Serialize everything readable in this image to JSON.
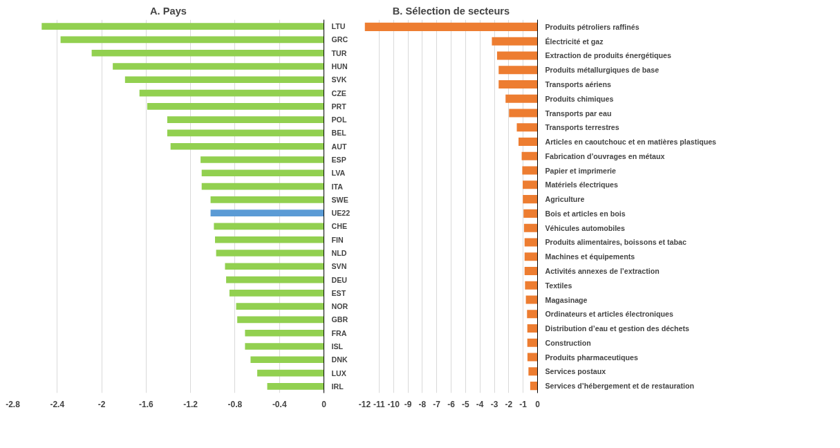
{
  "chart_data": [
    {
      "type": "bar",
      "orientation": "horizontal",
      "title": "A. Pays",
      "categories": [
        "LTU",
        "GRC",
        "TUR",
        "HUN",
        "SVK",
        "CZE",
        "PRT",
        "POL",
        "BEL",
        "AUT",
        "ESP",
        "LVA",
        "ITA",
        "SWE",
        "UE22",
        "CHE",
        "FIN",
        "NLD",
        "SVN",
        "DEU",
        "EST",
        "NOR",
        "GBR",
        "FRA",
        "ISL",
        "DNK",
        "LUX",
        "IRL"
      ],
      "values": [
        -2.54,
        -2.37,
        -2.09,
        -1.9,
        -1.79,
        -1.66,
        -1.59,
        -1.41,
        -1.41,
        -1.38,
        -1.11,
        -1.1,
        -1.1,
        -1.02,
        -1.02,
        -0.99,
        -0.98,
        -0.97,
        -0.89,
        -0.88,
        -0.85,
        -0.79,
        -0.78,
        -0.71,
        -0.71,
        -0.66,
        -0.6,
        -0.51
      ],
      "colors": [
        "#92d050",
        "#92d050",
        "#92d050",
        "#92d050",
        "#92d050",
        "#92d050",
        "#92d050",
        "#92d050",
        "#92d050",
        "#92d050",
        "#92d050",
        "#92d050",
        "#92d050",
        "#92d050",
        "#5b9bd5",
        "#92d050",
        "#92d050",
        "#92d050",
        "#92d050",
        "#92d050",
        "#92d050",
        "#92d050",
        "#92d050",
        "#92d050",
        "#92d050",
        "#92d050",
        "#92d050",
        "#92d050"
      ],
      "xlim": [
        -2.8,
        0
      ],
      "xticks": [
        -2.8,
        -2.4,
        -2,
        -1.6,
        -1.2,
        -0.8,
        -0.4,
        0
      ],
      "grid": "x"
    },
    {
      "type": "bar",
      "orientation": "horizontal",
      "title": "B. Sélection de secteurs",
      "categories": [
        "Produits pétroliers raffinés",
        "Électricité et gaz",
        "Extraction de produits énergétiques",
        "Produits métallurgiques de base",
        "Transports aériens",
        "Produits chimiques",
        "Transports par eau",
        "Transports terrestres",
        "Articles en caoutchouc et en matières plastiques",
        "Fabrication d’ouvrages en métaux",
        "Papier et imprimerie",
        "Matériels électriques",
        "Agriculture",
        "Bois et articles en bois",
        "Véhicules automobiles",
        "Produits alimentaires, boissons et tabac",
        "Machines et équipements",
        "Activités annexes de l’extraction",
        "Textiles",
        "Magasinage",
        "Ordinateurs et articles électroniques",
        "Distribution d’eau et gestion des déchets",
        "Construction",
        "Produits pharmaceutiques",
        "Services postaux",
        "Services d’hébergement et de restauration"
      ],
      "values": [
        -12.0,
        -3.17,
        -2.81,
        -2.7,
        -2.7,
        -2.22,
        -1.98,
        -1.44,
        -1.32,
        -1.1,
        -1.06,
        -1.03,
        -1.02,
        -0.97,
        -0.94,
        -0.9,
        -0.9,
        -0.9,
        -0.87,
        -0.81,
        -0.73,
        -0.71,
        -0.71,
        -0.7,
        -0.63,
        -0.51
      ],
      "color": "#ed7d31",
      "xlim": [
        -12,
        0
      ],
      "xticks": [
        -12,
        -11,
        -10,
        -9,
        -8,
        -7,
        -6,
        -5,
        -4,
        -3,
        -2,
        -1,
        0
      ],
      "grid": "x"
    }
  ]
}
